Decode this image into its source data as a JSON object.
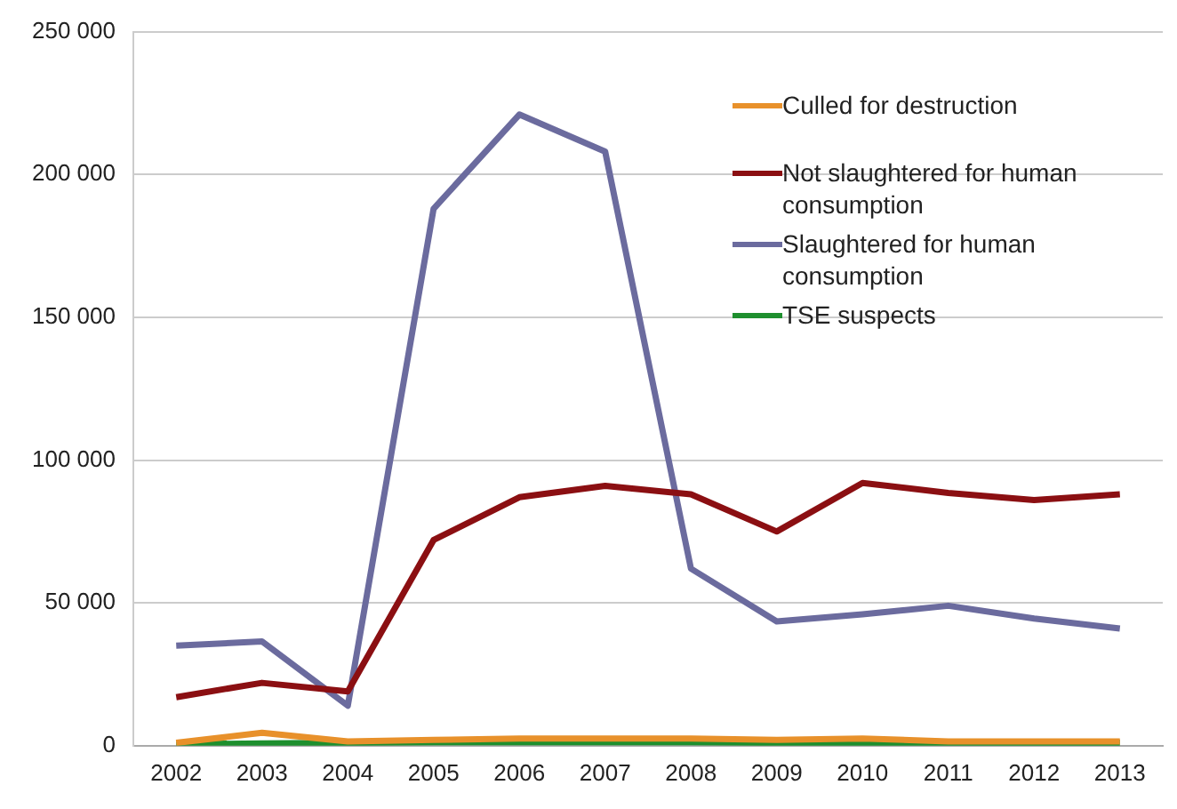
{
  "chart_data": {
    "type": "line",
    "categories": [
      "2002",
      "2003",
      "2004",
      "2005",
      "2006",
      "2007",
      "2008",
      "2009",
      "2010",
      "2011",
      "2012",
      "2013"
    ],
    "series": [
      {
        "name": "Culled for destruction",
        "color": "#e8912b",
        "values": [
          1000,
          4500,
          1500,
          2000,
          2500,
          2500,
          2500,
          2000,
          2500,
          1500,
          1500,
          1500
        ]
      },
      {
        "name": "Not slaughtered for human consumption",
        "color": "#8b0f12",
        "values": [
          17000,
          22000,
          19000,
          72000,
          87000,
          91000,
          88000,
          75000,
          92000,
          88500,
          86000,
          88000
        ]
      },
      {
        "name": "Slaughtered for human consumption",
        "color": "#6b6b9e",
        "values": [
          35000,
          36500,
          14000,
          188000,
          221000,
          208000,
          62000,
          43500,
          46000,
          49000,
          44500,
          41000
        ]
      },
      {
        "name": "TSE suspects",
        "color": "#1e8f2e",
        "values": [
          500,
          800,
          1000,
          1200,
          1200,
          1200,
          1200,
          1000,
          1000,
          1000,
          1000,
          1000
        ]
      }
    ],
    "ylim": [
      0,
      250000
    ],
    "yticks": [
      0,
      {
        "value": 50000,
        "label": "50 000"
      },
      {
        "value": 100000,
        "label": "100 000"
      },
      {
        "value": 150000,
        "label": "150 000"
      },
      {
        "value": 200000,
        "label": "200 000"
      },
      {
        "value": 250000,
        "label": "250 000"
      }
    ],
    "grid": "y",
    "legend": "top right",
    "marker": "none",
    "line_style": "solid"
  }
}
